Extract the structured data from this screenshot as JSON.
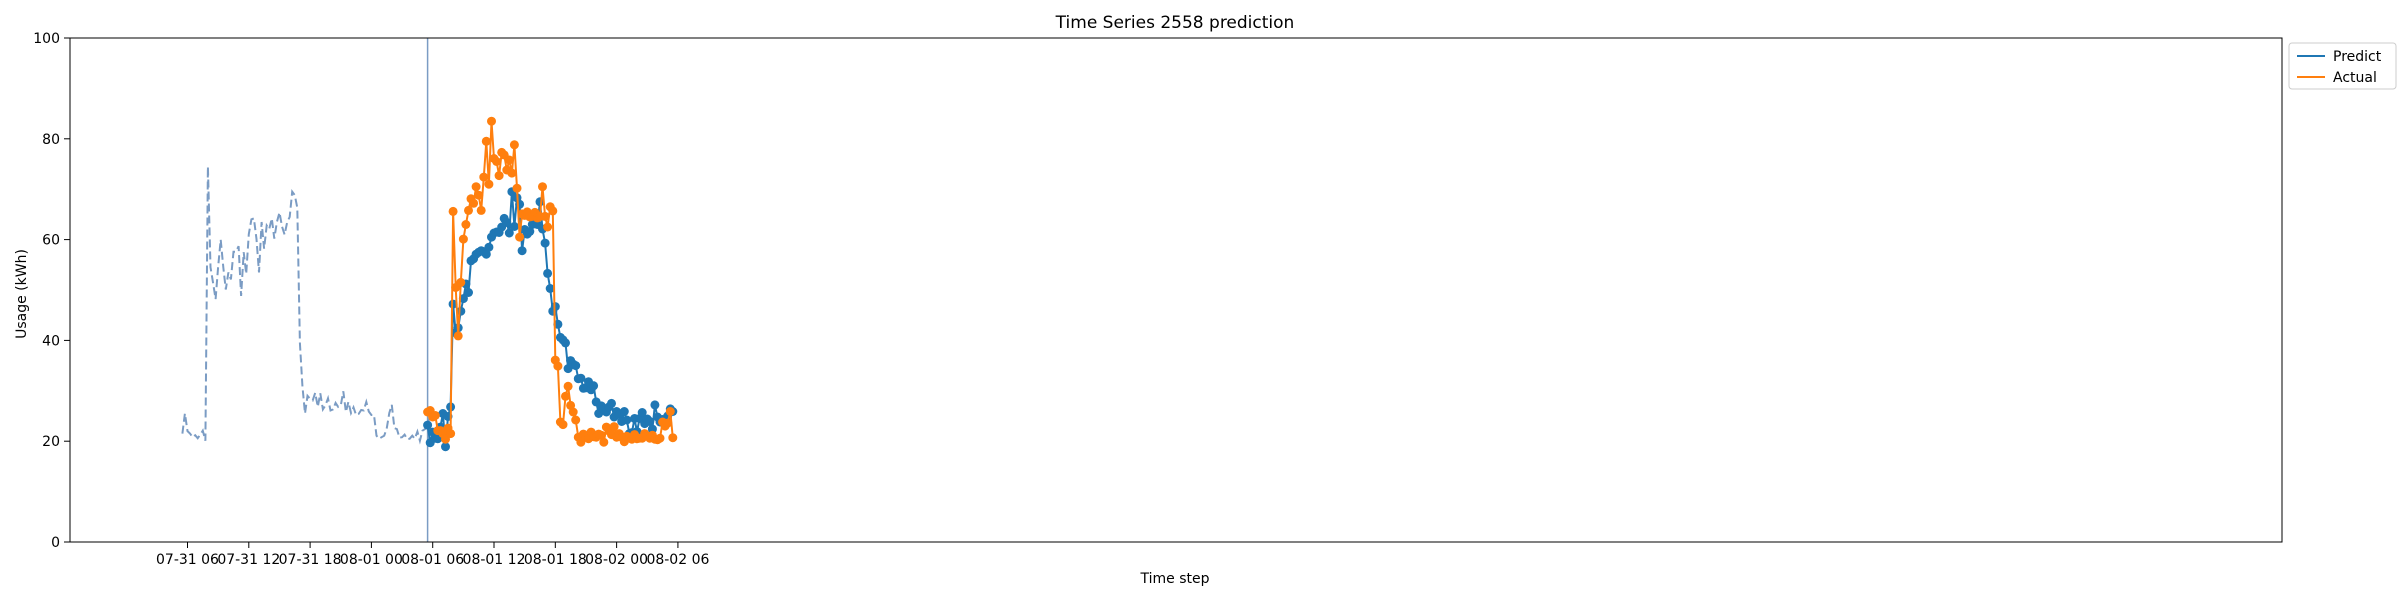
{
  "chart_data": {
    "type": "line",
    "title": "Time Series 2558 prediction",
    "xlabel": "Time step",
    "ylabel": "Usage (kWh)",
    "ylim": [
      0,
      100
    ],
    "xlim": [
      -5.5,
      211
    ],
    "x_unit": "hours since 07-31 00:00 (converted to the printed date ticks)",
    "x_ticks": [
      {
        "value": 6,
        "label": "07-31 06"
      },
      {
        "value": 12,
        "label": "07-31 12"
      },
      {
        "value": 18,
        "label": "07-31 18"
      },
      {
        "value": 24,
        "label": "08-01 00"
      },
      {
        "value": 30,
        "label": "08-01 06"
      },
      {
        "value": 36,
        "label": "08-01 12"
      },
      {
        "value": 42,
        "label": "08-01 18"
      },
      {
        "value": 48,
        "label": "08-02 00"
      },
      {
        "value": 54,
        "label": "08-02 06"
      }
    ],
    "y_ticks": [
      0,
      20,
      40,
      60,
      80,
      100
    ],
    "grid": false,
    "legend_position": "outside-top-right",
    "colors": {
      "predict": "#1f77b4",
      "actual": "#ff7f0e",
      "history": "#7b9cc4",
      "split_line": "#7b9cc4"
    },
    "split_x": 29.5,
    "history": {
      "start": 5.5,
      "step": 0.25,
      "values": [
        21.5,
        25.5,
        22,
        21.5,
        20.8,
        21.2,
        20.6,
        21.3,
        22.1,
        20.1,
        74.5,
        54.5,
        51.5,
        48.2,
        54.5,
        60,
        54.5,
        50.1,
        53.5,
        52.1,
        57.6,
        57.6,
        58.7,
        48.8,
        57.5,
        53.2,
        61.1,
        64,
        64.2,
        60.1,
        53.5,
        63.5,
        58.2,
        62.8,
        62.1,
        64.2,
        60.2,
        63.5,
        65.4,
        62.6,
        61,
        63.4,
        64.5,
        69.5,
        68.8,
        66.3,
        39.5,
        31,
        25.5,
        29,
        28.4,
        28.1,
        29.6,
        26.8,
        29.5,
        26.3,
        27.1,
        28.5,
        26.1,
        26.3,
        27.6,
        26.8,
        27.1,
        29.9,
        25.8,
        27.8,
        25.6,
        26.7,
        25.2,
        25.4,
        26.2,
        26.1,
        27.8,
        25.9,
        25.2,
        25.2,
        21.1,
        20.5,
        20.8,
        21.1,
        22.5,
        25.6,
        27.2,
        22.6,
        22.4,
        20.7,
        20.8,
        21.3,
        20.4,
        20.5,
        21.1,
        20.5,
        21.9,
        20.1,
        22.1,
        22.4,
        23.5,
        25
      ]
    },
    "series": [
      {
        "name": "Predict",
        "start": 29.5,
        "step": 0.25,
        "values": [
          23.2,
          19.7,
          21.8,
          20.6,
          20.5,
          22.8,
          25.5,
          18.9,
          24.9,
          26.8,
          47.2,
          41.5,
          42.5,
          45.8,
          48.3,
          51.2,
          49.5,
          55.8,
          56.2,
          57.1,
          57.5,
          57.8,
          57.6,
          57.1,
          58.5,
          60.5,
          61.3,
          61.5,
          61.4,
          62.5,
          64.2,
          63.4,
          61.3,
          69.5,
          62.6,
          68.3,
          67,
          57.8,
          62,
          61.1,
          61.6,
          63,
          64.1,
          63,
          67.5,
          62.1,
          59.3,
          53.3,
          50.3,
          45.8,
          46.7,
          43.2,
          40.6,
          40.1,
          39.5,
          34.4,
          36,
          35.3,
          35,
          32.4,
          32.5,
          30.5,
          30.6,
          31.8,
          30.2,
          31,
          27.8,
          25.5,
          27,
          26.3,
          25.8,
          26.8,
          27.5,
          24.8,
          25.9,
          25.3,
          23.9,
          25.9,
          24.2,
          21.5,
          21.7,
          24.5,
          21.9,
          24.5,
          25.7,
          23.5,
          24.4,
          23.9,
          22.4,
          27.2,
          24.8,
          23.8,
          24.3,
          24.2,
          25,
          26.4,
          25.9
        ]
      },
      {
        "name": "Actual",
        "start": 29.5,
        "step": 0.25,
        "values": [
          25.8,
          26.1,
          24.8,
          25.1,
          22.1,
          22.1,
          21.5,
          20.4,
          22.6,
          21.5,
          65.6,
          50.5,
          40.9,
          51.5,
          60.1,
          63,
          65.8,
          68.1,
          67.2,
          70.5,
          68.8,
          65.8,
          72.4,
          79.5,
          71,
          83.5,
          76.1,
          75.5,
          72.7,
          77.3,
          76.8,
          73.8,
          75.8,
          73.2,
          78.8,
          70.2,
          60.5,
          65.1,
          64.8,
          65.5,
          64.5,
          64.6,
          65.4,
          64.3,
          64.6,
          70.5,
          64.6,
          62.5,
          66.5,
          65.7,
          36.1,
          34.9,
          23.8,
          23.3,
          28.9,
          30.9,
          27.1,
          25.8,
          24.2,
          20.8,
          19.8,
          21.4,
          20.9,
          20.5,
          21.8,
          20.9,
          20.8,
          21.4,
          21.2,
          19.8,
          22.8,
          22,
          21.3,
          22.9,
          20.8,
          21.5,
          20.8,
          19.9,
          21,
          20.6,
          20.4,
          21.3,
          20.5,
          20.6,
          20.6,
          21.5,
          21,
          20.6,
          21.2,
          20.4,
          20.3,
          20.6,
          23.8,
          23,
          23.6,
          25.9,
          20.7
        ]
      }
    ]
  }
}
